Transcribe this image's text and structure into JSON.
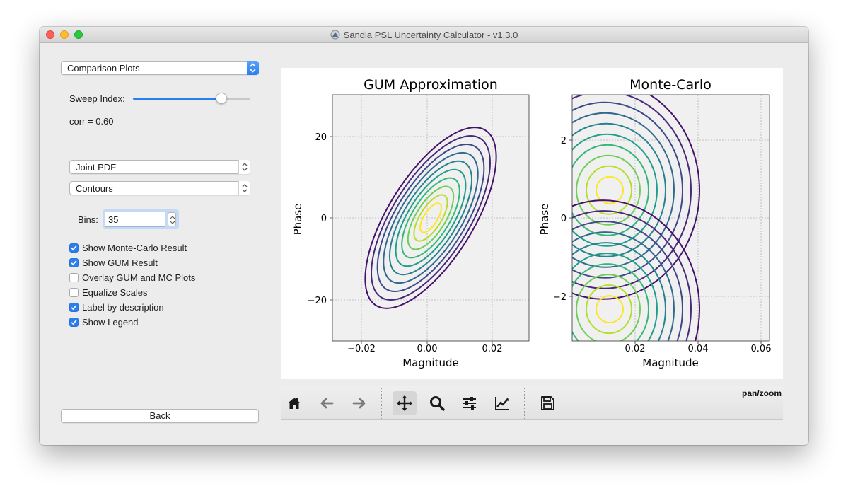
{
  "window": {
    "title": "Sandia PSL Uncertainty Calculator - v1.3.0"
  },
  "sidebar": {
    "view_select": "Comparison Plots",
    "sweep_label": "Sweep Index:",
    "sweep_value": 0.78,
    "corr_label": "corr = 0.60",
    "plot_type": "Joint PDF",
    "plot_style": "Contours",
    "bins_label": "Bins:",
    "bins_value": "35",
    "options": [
      {
        "label": "Show Monte-Carlo Result",
        "checked": true
      },
      {
        "label": "Show GUM Result",
        "checked": true
      },
      {
        "label": "Overlay GUM and MC Plots",
        "checked": false
      },
      {
        "label": "Equalize Scales",
        "checked": false
      },
      {
        "label": "Label by description",
        "checked": true
      },
      {
        "label": "Show Legend",
        "checked": true
      }
    ],
    "back_label": "Back"
  },
  "plots": {
    "gum": {
      "title": "GUM Approximation",
      "xlabel": "Magnitude",
      "ylabel": "Phase",
      "xticks": [
        "−0.02",
        "0.00",
        "0.02"
      ],
      "yticks": [
        "20",
        "0",
        "−20"
      ]
    },
    "mc": {
      "title": "Monte-Carlo",
      "xlabel": "Magnitude",
      "ylabel": "Phase",
      "xticks": [
        "0.02",
        "0.04",
        "0.06"
      ],
      "yticks": [
        "2",
        "0",
        "−2"
      ]
    }
  },
  "chart_data": [
    {
      "type": "contour",
      "title": "GUM Approximation",
      "xlabel": "Magnitude",
      "ylabel": "Phase",
      "xlim": [
        -0.03,
        0.03
      ],
      "ylim": [
        -30,
        30
      ],
      "grid": true,
      "center": [
        0.0,
        0.0
      ],
      "levels": 10,
      "correlation": 0.6,
      "colormap": "viridis"
    },
    {
      "type": "contour",
      "title": "Monte-Carlo",
      "xlabel": "Magnitude",
      "ylabel": "Phase",
      "xlim": [
        0.0,
        0.062
      ],
      "ylim": [
        -3.1,
        3.1
      ],
      "grid": true,
      "peaks": [
        [
          0.012,
          0.7
        ],
        [
          0.012,
          -2.3
        ]
      ],
      "levels": 10,
      "colormap": "viridis"
    }
  ],
  "toolbar": {
    "mode_label": "pan/zoom",
    "buttons": [
      "home-icon",
      "back-arrow-icon",
      "forward-arrow-icon",
      "pan-icon",
      "zoom-icon",
      "subplots-config-icon",
      "edit-axes-icon",
      "save-icon"
    ]
  },
  "colors": {
    "accent": "#2a7ef0",
    "levels": [
      "#46106b",
      "#482878",
      "#3e4989",
      "#31688e",
      "#26828e",
      "#1f9e89",
      "#35b779",
      "#6ece58",
      "#b5de2b",
      "#fde725"
    ]
  }
}
